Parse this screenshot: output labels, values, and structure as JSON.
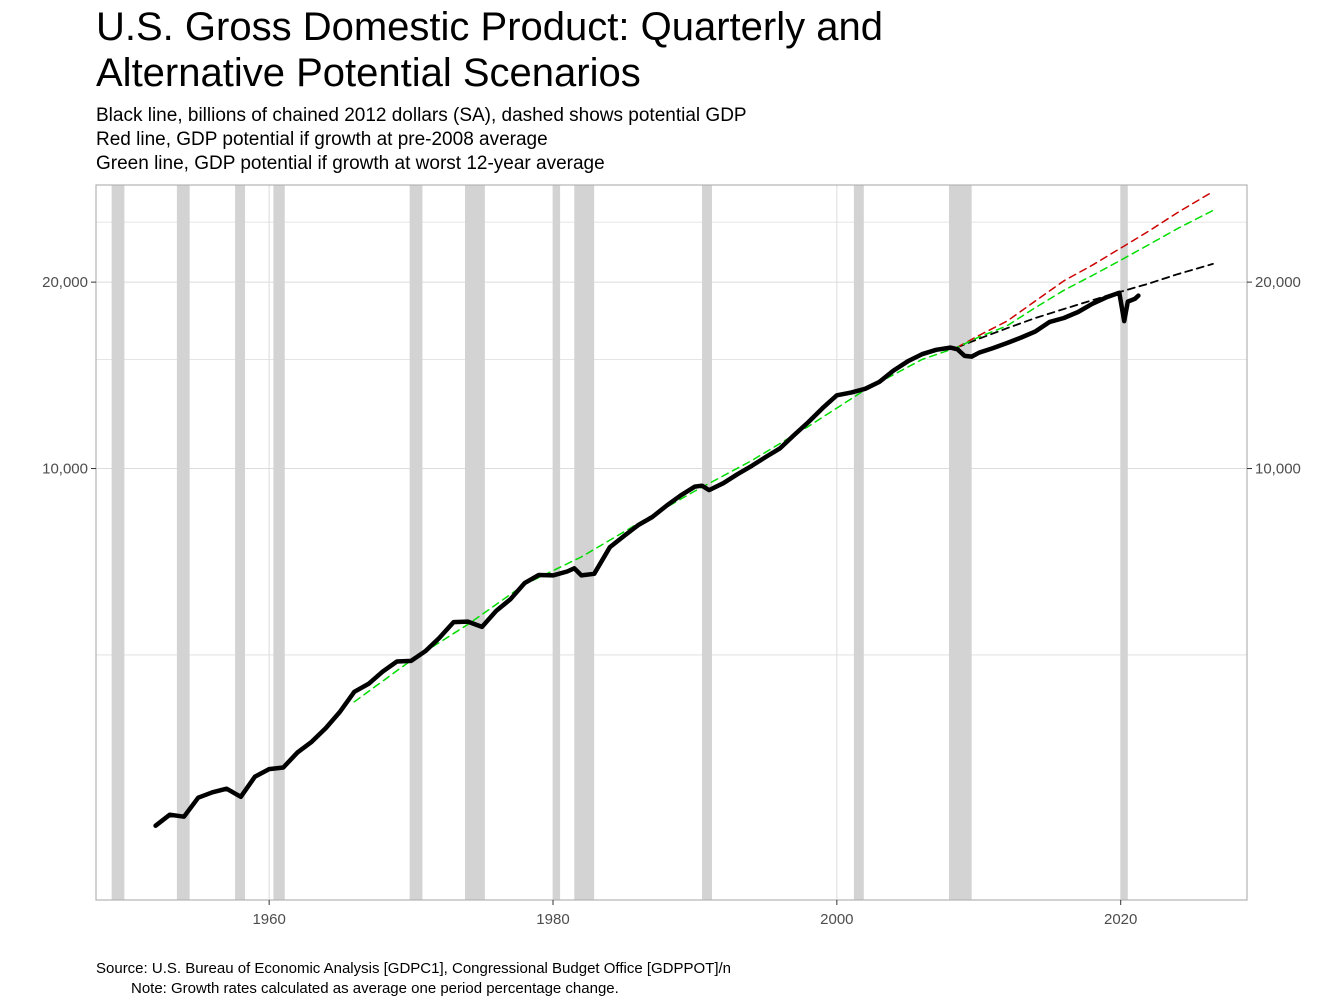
{
  "title_line1": "U.S. Gross Domestic Product: Quarterly and",
  "title_line2": "Alternative Potential Scenarios",
  "subtitle_lines": [
    "Black line, billions of chained 2012 dollars (SA), dashed shows potential GDP",
    "Red line, GDP potential if growth at pre-2008 average",
    "Green line, GDP potential if growth at worst 12-year average"
  ],
  "caption_line1": "Source: U.S. Bureau of Economic Analysis [GDPC1], Congressional Budget Office [GDPPOT]/n",
  "caption_line2": "Note: Growth rates calculated as average one period percentage change.",
  "colors": {
    "gdp": "#000000",
    "cbo_potential": "#000000",
    "pre2008": "#cc0000",
    "worst12": "#00dd00",
    "recession": "#d3d3d3",
    "grid": "#dcdcdc",
    "panel_border": "#b3b3b3"
  },
  "chart_data": {
    "type": "line",
    "scale": "log",
    "xlim": [
      1947.8,
      2028.9
    ],
    "ylim": [
      2010,
      28700
    ],
    "x_ticks": [
      1960,
      1980,
      2000,
      2020
    ],
    "x_tick_labels": [
      "1960",
      "1980",
      "2000",
      "2020"
    ],
    "y_ticks": [
      10000,
      20000
    ],
    "y_tick_labels_left": [
      "10,000",
      "20,000"
    ],
    "y_tick_labels_right": [
      "10,000",
      "20,000"
    ],
    "y_minor_gridlines": [
      5000,
      15000,
      25000
    ],
    "recessions": [
      [
        1948.9,
        1949.8
      ],
      [
        1953.5,
        1954.4
      ],
      [
        1957.6,
        1958.3
      ],
      [
        1960.3,
        1961.1
      ],
      [
        1969.9,
        1970.8
      ],
      [
        1973.8,
        1975.2
      ],
      [
        1980.0,
        1980.5
      ],
      [
        1981.5,
        1982.9
      ],
      [
        1990.5,
        1991.2
      ],
      [
        2001.2,
        2001.9
      ],
      [
        2007.9,
        2009.5
      ],
      [
        2020.0,
        2020.5
      ]
    ],
    "series": [
      {
        "name": "GDP",
        "style": "solid",
        "points": [
          [
            1952.0,
            2650
          ],
          [
            1953.0,
            2760
          ],
          [
            1954.0,
            2740
          ],
          [
            1955.0,
            2940
          ],
          [
            1956.0,
            3000
          ],
          [
            1957.0,
            3040
          ],
          [
            1958.0,
            2950
          ],
          [
            1959.0,
            3180
          ],
          [
            1960.0,
            3270
          ],
          [
            1961.0,
            3290
          ],
          [
            1962.0,
            3480
          ],
          [
            1963.0,
            3620
          ],
          [
            1964.0,
            3810
          ],
          [
            1965.0,
            4050
          ],
          [
            1966.0,
            4360
          ],
          [
            1967.0,
            4490
          ],
          [
            1968.0,
            4700
          ],
          [
            1969.0,
            4880
          ],
          [
            1970.0,
            4890
          ],
          [
            1971.0,
            5070
          ],
          [
            1972.0,
            5330
          ],
          [
            1973.0,
            5650
          ],
          [
            1974.0,
            5660
          ],
          [
            1975.0,
            5550
          ],
          [
            1976.0,
            5890
          ],
          [
            1977.0,
            6150
          ],
          [
            1978.0,
            6530
          ],
          [
            1979.0,
            6730
          ],
          [
            1980.0,
            6720
          ],
          [
            1981.0,
            6820
          ],
          [
            1981.5,
            6900
          ],
          [
            1982.0,
            6720
          ],
          [
            1982.9,
            6760
          ],
          [
            1984.0,
            7460
          ],
          [
            1985.0,
            7780
          ],
          [
            1986.0,
            8100
          ],
          [
            1987.0,
            8350
          ],
          [
            1988.0,
            8710
          ],
          [
            1989.0,
            9050
          ],
          [
            1990.0,
            9350
          ],
          [
            1990.5,
            9380
          ],
          [
            1991.0,
            9230
          ],
          [
            1992.0,
            9470
          ],
          [
            1993.0,
            9790
          ],
          [
            1994.0,
            10100
          ],
          [
            1995.0,
            10440
          ],
          [
            1996.0,
            10780
          ],
          [
            1997.0,
            11330
          ],
          [
            1998.0,
            11890
          ],
          [
            1999.0,
            12520
          ],
          [
            2000.0,
            13130
          ],
          [
            2001.0,
            13260
          ],
          [
            2002.0,
            13450
          ],
          [
            2003.0,
            13800
          ],
          [
            2004.0,
            14400
          ],
          [
            2005.0,
            14900
          ],
          [
            2006.0,
            15300
          ],
          [
            2007.0,
            15550
          ],
          [
            2008.0,
            15680
          ],
          [
            2008.5,
            15580
          ],
          [
            2009.0,
            15200
          ],
          [
            2009.5,
            15160
          ],
          [
            2010.0,
            15380
          ],
          [
            2011.0,
            15650
          ],
          [
            2012.0,
            15950
          ],
          [
            2013.0,
            16280
          ],
          [
            2014.0,
            16650
          ],
          [
            2015.0,
            17250
          ],
          [
            2016.0,
            17500
          ],
          [
            2017.0,
            17900
          ],
          [
            2018.0,
            18450
          ],
          [
            2019.0,
            18900
          ],
          [
            2019.9,
            19230
          ],
          [
            2020.25,
            17300
          ],
          [
            2020.5,
            18600
          ],
          [
            2021.0,
            18800
          ],
          [
            2021.25,
            19020
          ]
        ]
      },
      {
        "name": "CBO potential GDP",
        "style": "dashed",
        "points": [
          [
            2008.5,
            15700
          ],
          [
            2010.0,
            16200
          ],
          [
            2012.0,
            16850
          ],
          [
            2014.0,
            17500
          ],
          [
            2016.0,
            18100
          ],
          [
            2018.0,
            18700
          ],
          [
            2020.0,
            19300
          ],
          [
            2022.0,
            19900
          ],
          [
            2024.0,
            20600
          ],
          [
            2026.5,
            21400
          ]
        ]
      },
      {
        "name": "Pre-2008 average growth",
        "style": "dashed",
        "points": [
          [
            2008.5,
            15700
          ],
          [
            2010.0,
            16400
          ],
          [
            2012.0,
            17300
          ],
          [
            2014.0,
            18650
          ],
          [
            2016.0,
            20100
          ],
          [
            2018.0,
            21300
          ],
          [
            2020.0,
            22700
          ],
          [
            2022.0,
            24200
          ],
          [
            2024.0,
            25900
          ],
          [
            2026.5,
            28000
          ]
        ]
      },
      {
        "name": "Worst 12-year average growth",
        "style": "dashed",
        "points": [
          [
            1966.0,
            4200
          ],
          [
            1970.0,
            4900
          ],
          [
            1974.0,
            5600
          ],
          [
            1978.0,
            6500
          ],
          [
            1982.0,
            7200
          ],
          [
            1986.0,
            8150
          ],
          [
            1990.0,
            9200
          ],
          [
            1994.0,
            10300
          ],
          [
            1998.0,
            11700
          ],
          [
            2002.0,
            13400
          ],
          [
            2006.0,
            15000
          ],
          [
            2008.5,
            15700
          ],
          [
            2010.0,
            16300
          ],
          [
            2012.0,
            17000
          ],
          [
            2014.0,
            18200
          ],
          [
            2016.0,
            19400
          ],
          [
            2018.0,
            20500
          ],
          [
            2020.0,
            21700
          ],
          [
            2022.0,
            23000
          ],
          [
            2024.0,
            24400
          ],
          [
            2026.5,
            26100
          ]
        ]
      }
    ]
  }
}
